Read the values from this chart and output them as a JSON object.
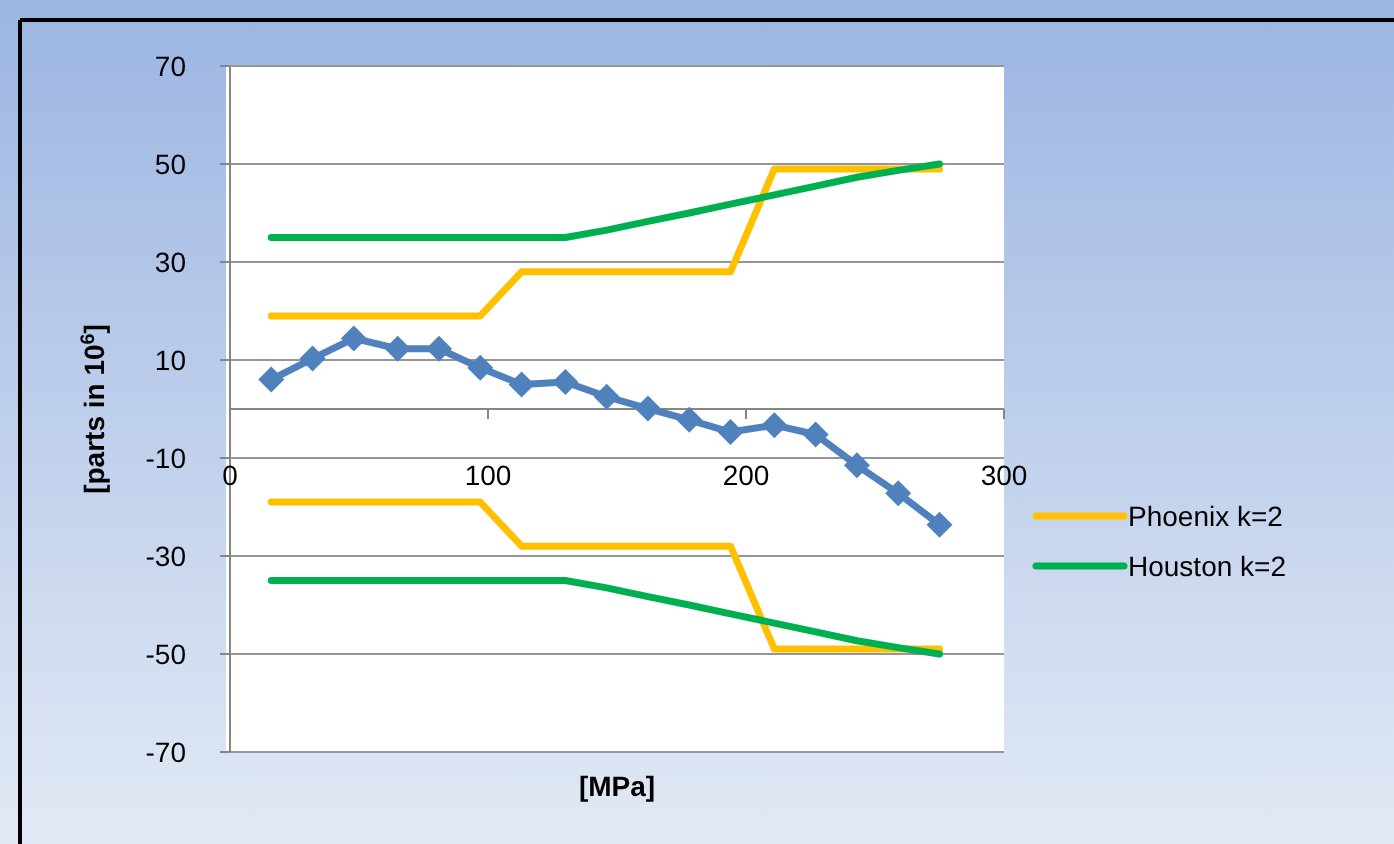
{
  "chart_data": {
    "type": "line",
    "xlabel": "[MPa]",
    "ylabel": "[parts in 10$^{6}$]",
    "xlim": [
      0,
      300
    ],
    "xticks": [
      0,
      100,
      200,
      300
    ],
    "ylim": [
      -70,
      70
    ],
    "yticks": [
      -70,
      -50,
      -30,
      -10,
      10,
      30,
      50,
      70
    ],
    "grid": "y",
    "legend": "right",
    "line_style": "solid",
    "series": [
      {
        "color": "#4f81bd",
        "marker": "diamond",
        "x": [
          16,
          32,
          48,
          65,
          81,
          97,
          113,
          130,
          146,
          162,
          178,
          194,
          211,
          227,
          243,
          259,
          275
        ],
        "values": [
          6,
          10.3,
          14.4,
          12.3,
          12.3,
          8.4,
          5,
          5.5,
          2.5,
          0.1,
          -2.2,
          -4.7,
          -3.3,
          -5.2,
          -11.5,
          -17.2,
          -23.6
        ]
      },
      {
        "name": "Phoenix k=2",
        "color": "#ffc000",
        "marker": "none",
        "x": [
          16,
          97,
          113,
          194,
          211,
          275
        ],
        "values": [
          19,
          19,
          28,
          28,
          49,
          49
        ]
      },
      {
        "color": "#ffc000",
        "marker": "none",
        "x": [
          16,
          97,
          113,
          194,
          211,
          275
        ],
        "values": [
          -19,
          -19,
          -28,
          -28,
          -49,
          -49
        ]
      },
      {
        "name": "Houston k=2",
        "color": "#00b050",
        "marker": "none",
        "x": [
          16,
          130,
          146,
          162,
          178,
          194,
          211,
          227,
          243,
          259,
          275
        ],
        "values": [
          35,
          35,
          36.5,
          38.3,
          40,
          41.8,
          43.7,
          45.5,
          47.3,
          48.7,
          50
        ]
      },
      {
        "color": "#00b050",
        "marker": "none",
        "x": [
          16,
          130,
          146,
          162,
          178,
          194,
          211,
          227,
          243,
          259,
          275
        ],
        "values": [
          -35,
          -35,
          -36.5,
          -38.3,
          -40,
          -41.8,
          -43.7,
          -45.5,
          -47.3,
          -48.7,
          -50
        ]
      }
    ]
  }
}
